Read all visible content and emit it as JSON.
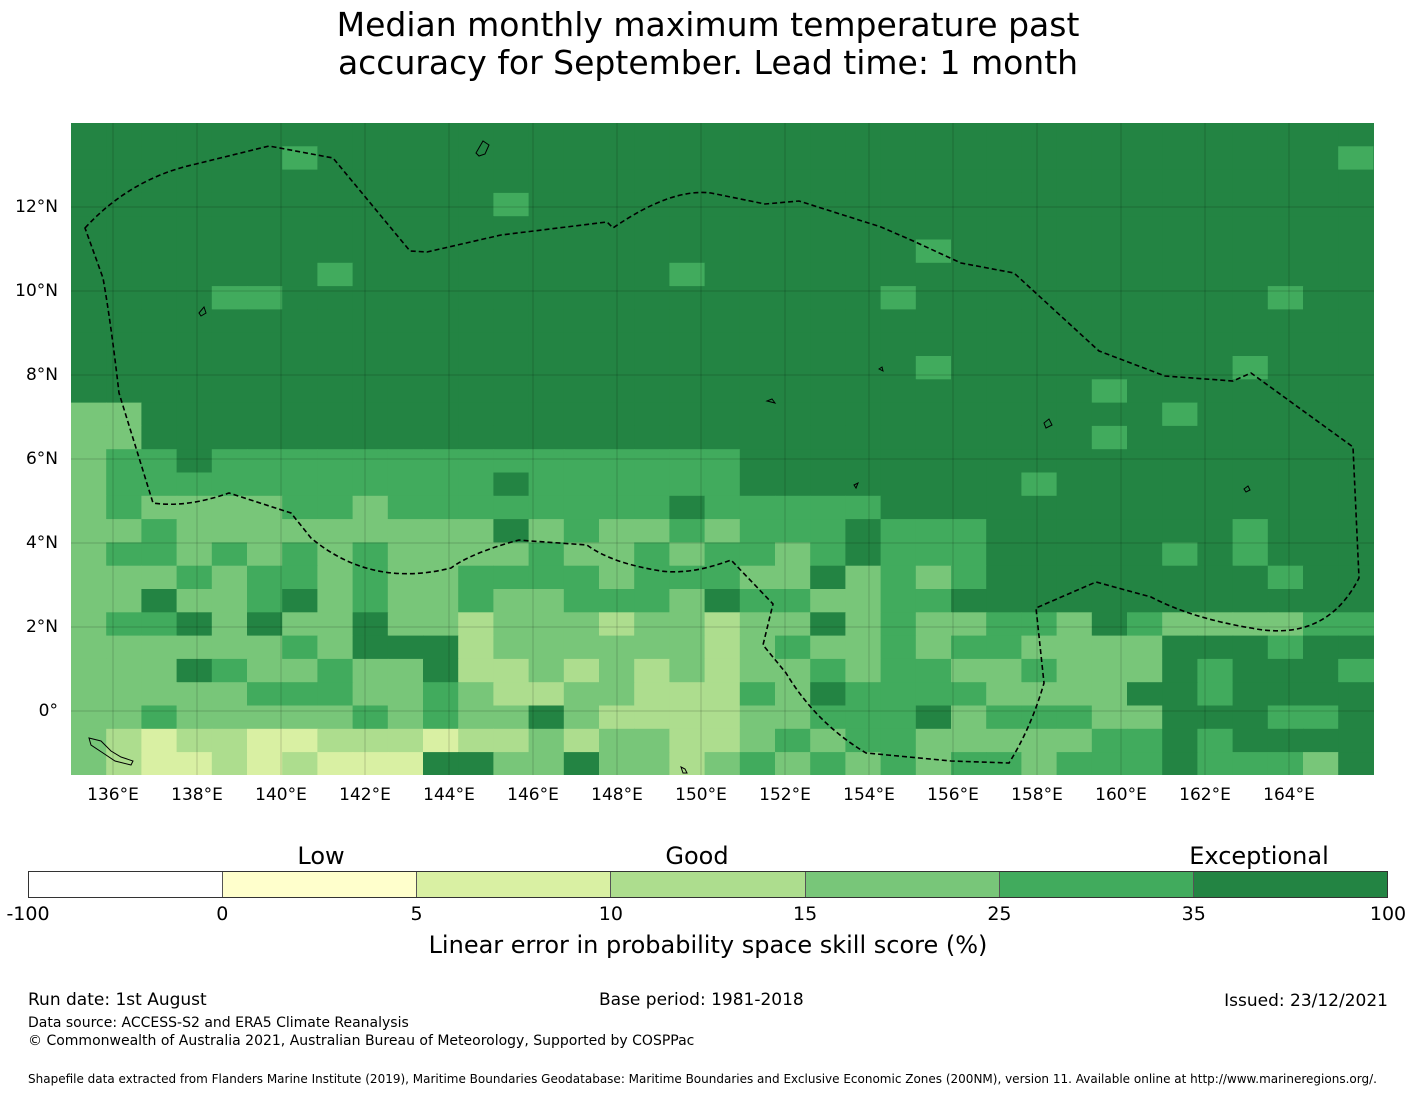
{
  "title": {
    "line1": "Median monthly maximum temperature past",
    "line2": "accuracy for September. Lead time: 1 month"
  },
  "map": {
    "longitude_labels": [
      "136°E",
      "138°E",
      "140°E",
      "142°E",
      "144°E",
      "146°E",
      "148°E",
      "150°E",
      "152°E",
      "154°E",
      "156°E",
      "158°E",
      "160°E",
      "162°E",
      "164°E"
    ],
    "latitude_labels": [
      "12°N",
      "10°N",
      "8°N",
      "6°N",
      "4°N",
      "2°N",
      "0°"
    ],
    "region_outline": "dashed black boundary",
    "dominant_categories": "Exceptional (dark green) in north, Good (light green) in south-west"
  },
  "legend": {
    "categories": [
      "Low",
      "Good",
      "Exceptional"
    ],
    "bins": [
      {
        "from": "-100",
        "to": "0",
        "color": "#ffffff"
      },
      {
        "from": "0",
        "to": "5",
        "color": "#ffffcc"
      },
      {
        "from": "5",
        "to": "10",
        "color": "#d9f0a3"
      },
      {
        "from": "10",
        "to": "15",
        "color": "#addd8e"
      },
      {
        "from": "15",
        "to": "25",
        "color": "#78c679"
      },
      {
        "from": "25",
        "to": "35",
        "color": "#41ab5d"
      },
      {
        "from": "35",
        "to": "100",
        "color": "#238443"
      }
    ],
    "ticks": [
      "-100",
      "0",
      "5",
      "10",
      "15",
      "25",
      "35",
      "100"
    ],
    "label": "Linear error in probability space skill score (%)"
  },
  "footer": {
    "run_date": "Run date: 1st August",
    "base_period": "Base period: 1981-2018",
    "issued": "Issued: 23/12/2021",
    "data_source": "Data source: ACCESS-S2 and ERA5 Climate Reanalysis",
    "copyright": "© Commonwealth of Australia 2021, Australian Bureau of Meteorology, Supported by COSPPac",
    "shapefile": "Shapefile data extracted from Flanders Marine Institute (2019), Maritime Boundaries Geodatabase: Maritime Boundaries and Exclusive Economic Zones (200NM), version 11. Available online at http://www.marineregions.org/."
  }
}
